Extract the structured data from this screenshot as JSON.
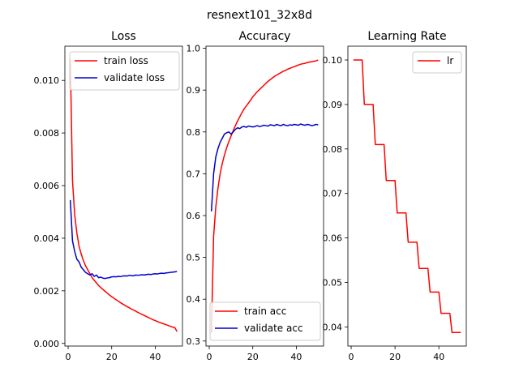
{
  "figure": {
    "suptitle": "resnext101_32x8d"
  },
  "chart_data": [
    {
      "type": "line",
      "title": "Loss",
      "xlabel": "",
      "ylabel": "",
      "xlim": [
        -1.5,
        52.5
      ],
      "ylim": [
        -0.0001,
        0.0113
      ],
      "xticks": [
        0,
        20,
        40
      ],
      "yticks": [
        0.0,
        0.002,
        0.004,
        0.006,
        0.008,
        0.01
      ],
      "ytick_labels": [
        "0.000",
        "0.002",
        "0.004",
        "0.006",
        "0.008",
        "0.010"
      ],
      "legend_position": "upper right",
      "grid": false,
      "series": [
        {
          "name": "train loss",
          "color": "#ff0000",
          "x": [
            1,
            2,
            3,
            4,
            5,
            6,
            7,
            8,
            9,
            10,
            11,
            12,
            13,
            14,
            15,
            16,
            17,
            18,
            19,
            20,
            21,
            22,
            23,
            24,
            25,
            26,
            27,
            28,
            29,
            30,
            31,
            32,
            33,
            34,
            35,
            36,
            37,
            38,
            39,
            40,
            41,
            42,
            43,
            44,
            45,
            46,
            47,
            48,
            49,
            50
          ],
          "y": [
            0.0108,
            0.0062,
            0.0049,
            0.0042,
            0.0037,
            0.0034,
            0.00315,
            0.00295,
            0.0028,
            0.00265,
            0.0025,
            0.0024,
            0.0023,
            0.0022,
            0.00212,
            0.00205,
            0.00198,
            0.00191,
            0.00184,
            0.00178,
            0.00172,
            0.00166,
            0.00161,
            0.00155,
            0.0015,
            0.00145,
            0.0014,
            0.00136,
            0.00131,
            0.00127,
            0.00123,
            0.00118,
            0.00114,
            0.0011,
            0.00106,
            0.00102,
            0.00098,
            0.00094,
            0.0009,
            0.00087,
            0.00083,
            0.0008,
            0.00077,
            0.00074,
            0.00071,
            0.00068,
            0.00065,
            0.00062,
            0.0006,
            0.00045
          ]
        },
        {
          "name": "validate loss",
          "color": "#0000cc",
          "x": [
            1,
            2,
            3,
            4,
            5,
            6,
            7,
            8,
            9,
            10,
            11,
            12,
            13,
            14,
            15,
            16,
            17,
            18,
            19,
            20,
            21,
            22,
            23,
            24,
            25,
            26,
            27,
            28,
            29,
            30,
            31,
            32,
            33,
            34,
            35,
            36,
            37,
            38,
            39,
            40,
            41,
            42,
            43,
            44,
            45,
            46,
            47,
            48,
            49,
            50
          ],
          "y": [
            0.00545,
            0.0039,
            0.0035,
            0.0032,
            0.0031,
            0.0029,
            0.0028,
            0.0027,
            0.00265,
            0.0026,
            0.00265,
            0.00255,
            0.0026,
            0.0025,
            0.00252,
            0.00248,
            0.00247,
            0.00249,
            0.0025,
            0.00253,
            0.00254,
            0.00253,
            0.00255,
            0.00254,
            0.00256,
            0.00257,
            0.00256,
            0.00259,
            0.00258,
            0.00257,
            0.0026,
            0.00259,
            0.0026,
            0.00261,
            0.0026,
            0.00262,
            0.00263,
            0.00262,
            0.00264,
            0.00265,
            0.00264,
            0.00266,
            0.00267,
            0.00266,
            0.00268,
            0.00269,
            0.0027,
            0.00271,
            0.00272,
            0.00274
          ]
        }
      ]
    },
    {
      "type": "line",
      "title": "Accuracy",
      "xlabel": "",
      "ylabel": "",
      "xlim": [
        -1.5,
        52.5
      ],
      "ylim": [
        0.288,
        1.005
      ],
      "xticks": [
        0,
        20,
        40
      ],
      "yticks": [
        0.3,
        0.4,
        0.5,
        0.6,
        0.7,
        0.8,
        0.9,
        1.0
      ],
      "ytick_labels": [
        "0.3",
        "0.4",
        "0.5",
        "0.6",
        "0.7",
        "0.8",
        "0.9",
        "1.0"
      ],
      "legend_position": "lower right",
      "grid": false,
      "series": [
        {
          "name": "train acc",
          "color": "#ff0000",
          "x": [
            1,
            2,
            3,
            4,
            5,
            6,
            7,
            8,
            9,
            10,
            11,
            12,
            13,
            14,
            15,
            16,
            17,
            18,
            19,
            20,
            21,
            22,
            23,
            24,
            25,
            26,
            27,
            28,
            29,
            30,
            31,
            32,
            33,
            34,
            35,
            36,
            37,
            38,
            39,
            40,
            41,
            42,
            43,
            44,
            45,
            46,
            47,
            48,
            49,
            50
          ],
          "y": [
            0.32,
            0.55,
            0.62,
            0.665,
            0.7,
            0.725,
            0.745,
            0.762,
            0.777,
            0.79,
            0.803,
            0.815,
            0.826,
            0.836,
            0.846,
            0.855,
            0.862,
            0.869,
            0.876,
            0.884,
            0.89,
            0.896,
            0.901,
            0.906,
            0.911,
            0.916,
            0.921,
            0.925,
            0.929,
            0.933,
            0.936,
            0.939,
            0.942,
            0.945,
            0.947,
            0.95,
            0.952,
            0.954,
            0.956,
            0.958,
            0.96,
            0.962,
            0.963,
            0.964,
            0.966,
            0.967,
            0.968,
            0.969,
            0.97,
            0.972
          ]
        },
        {
          "name": "validate acc",
          "color": "#0000cc",
          "x": [
            1,
            2,
            3,
            4,
            5,
            6,
            7,
            8,
            9,
            10,
            11,
            12,
            13,
            14,
            15,
            16,
            17,
            18,
            19,
            20,
            21,
            22,
            23,
            24,
            25,
            26,
            27,
            28,
            29,
            30,
            31,
            32,
            33,
            34,
            35,
            36,
            37,
            38,
            39,
            40,
            41,
            42,
            43,
            44,
            45,
            46,
            47,
            48,
            49,
            50
          ],
          "y": [
            0.61,
            0.7,
            0.74,
            0.76,
            0.775,
            0.785,
            0.795,
            0.798,
            0.8,
            0.795,
            0.8,
            0.806,
            0.81,
            0.808,
            0.812,
            0.813,
            0.811,
            0.814,
            0.813,
            0.812,
            0.813,
            0.815,
            0.813,
            0.814,
            0.816,
            0.815,
            0.814,
            0.817,
            0.816,
            0.815,
            0.818,
            0.816,
            0.815,
            0.818,
            0.816,
            0.815,
            0.817,
            0.816,
            0.818,
            0.817,
            0.816,
            0.819,
            0.817,
            0.816,
            0.818,
            0.817,
            0.815,
            0.816,
            0.818,
            0.817
          ]
        }
      ]
    },
    {
      "type": "line",
      "title": "Learning Rate",
      "xlabel": "",
      "ylabel": "",
      "xlim": [
        -1.5,
        52.5
      ],
      "ylim": [
        0.0357,
        0.1031
      ],
      "xticks": [
        0,
        20,
        40
      ],
      "yticks": [
        0.04,
        0.05,
        0.06,
        0.07,
        0.08,
        0.09,
        0.1
      ],
      "ytick_labels": [
        "0.04",
        "0.05",
        "0.06",
        "0.07",
        "0.08",
        "0.09",
        "0.10"
      ],
      "legend_position": "upper right",
      "grid": false,
      "series": [
        {
          "name": "lr",
          "color": "#ff0000",
          "step": true,
          "x": [
            1,
            5,
            6,
            10,
            11,
            15,
            16,
            20,
            21,
            25,
            26,
            30,
            31,
            35,
            36,
            40,
            41,
            45,
            46,
            50
          ],
          "y": [
            0.1,
            0.1,
            0.09,
            0.09,
            0.081,
            0.081,
            0.0729,
            0.0729,
            0.06561,
            0.06561,
            0.059049,
            0.059049,
            0.0531441,
            0.0531441,
            0.04782969,
            0.04782969,
            0.043046721,
            0.043046721,
            0.038742049,
            0.038742049
          ]
        }
      ]
    }
  ]
}
